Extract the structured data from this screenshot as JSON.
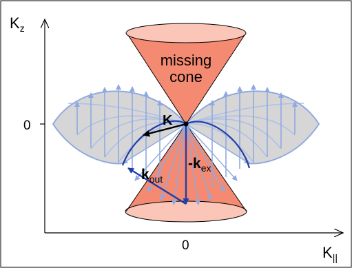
{
  "diagram": {
    "axes": {
      "vertical_label": "K",
      "vertical_sub": "z",
      "horizontal_label": "K",
      "horizontal_sub": "||",
      "vertical_zero": "0",
      "horizontal_zero": "0"
    },
    "cone": {
      "line1": "missing",
      "line2": "cone"
    },
    "vectors": {
      "k_label": "K",
      "kout_main": "k",
      "kout_sub": "out",
      "kex_prefix": "-",
      "kex_main": "k",
      "kex_sub": "ex"
    },
    "colors": {
      "cone_fill": "#f58a72",
      "cone_rim": "#fbc6b7",
      "gray_lobe": "#d6d6d6",
      "light_blue": "#8fa9e0",
      "dark_blue": "#1f3ea8"
    }
  }
}
